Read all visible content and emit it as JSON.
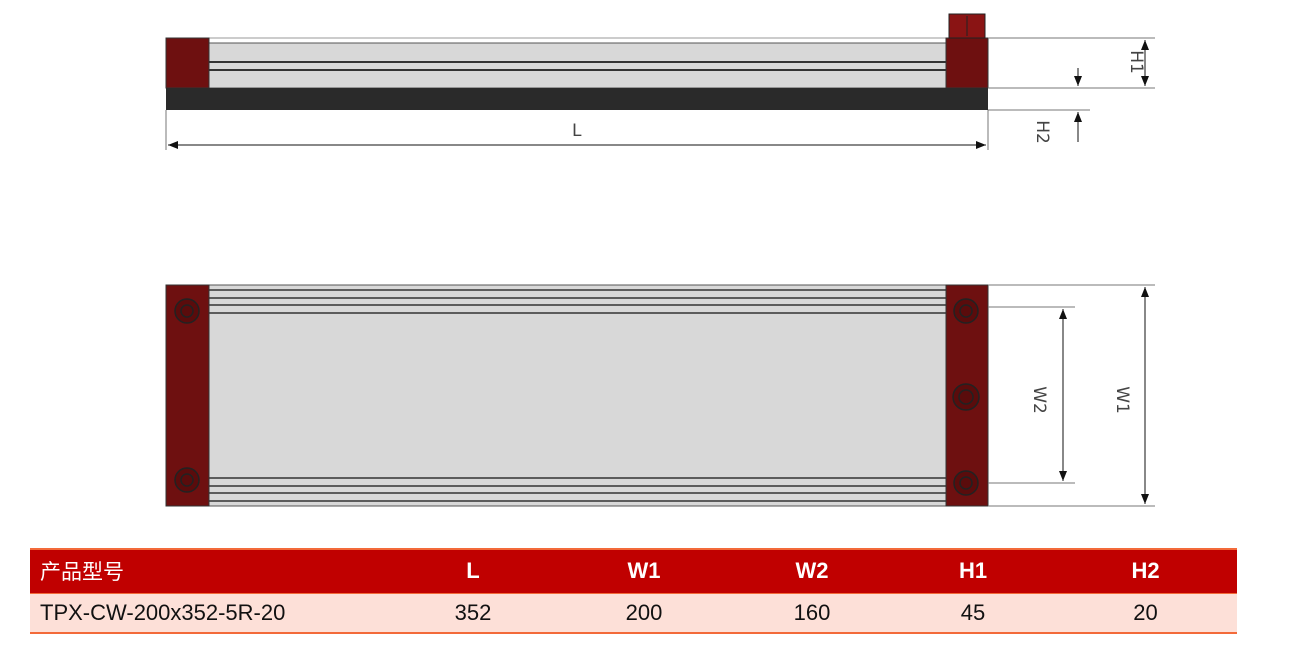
{
  "drawing": {
    "labels": {
      "L": "L",
      "H1": "H1",
      "H2": "H2",
      "W1": "W1",
      "W2": "W2"
    },
    "colors": {
      "bracket": "#6e1010",
      "rail": "#d8d8d8",
      "base": "#2a2a2a",
      "header": "#c00000",
      "row": "#fde0d8"
    }
  },
  "table": {
    "headers": [
      "产品型号",
      "L",
      "W1",
      "W2",
      "H1",
      "H2"
    ],
    "rows": [
      [
        "TPX-CW-200x352-5R-20",
        "352",
        "200",
        "160",
        "45",
        "20"
      ]
    ]
  }
}
